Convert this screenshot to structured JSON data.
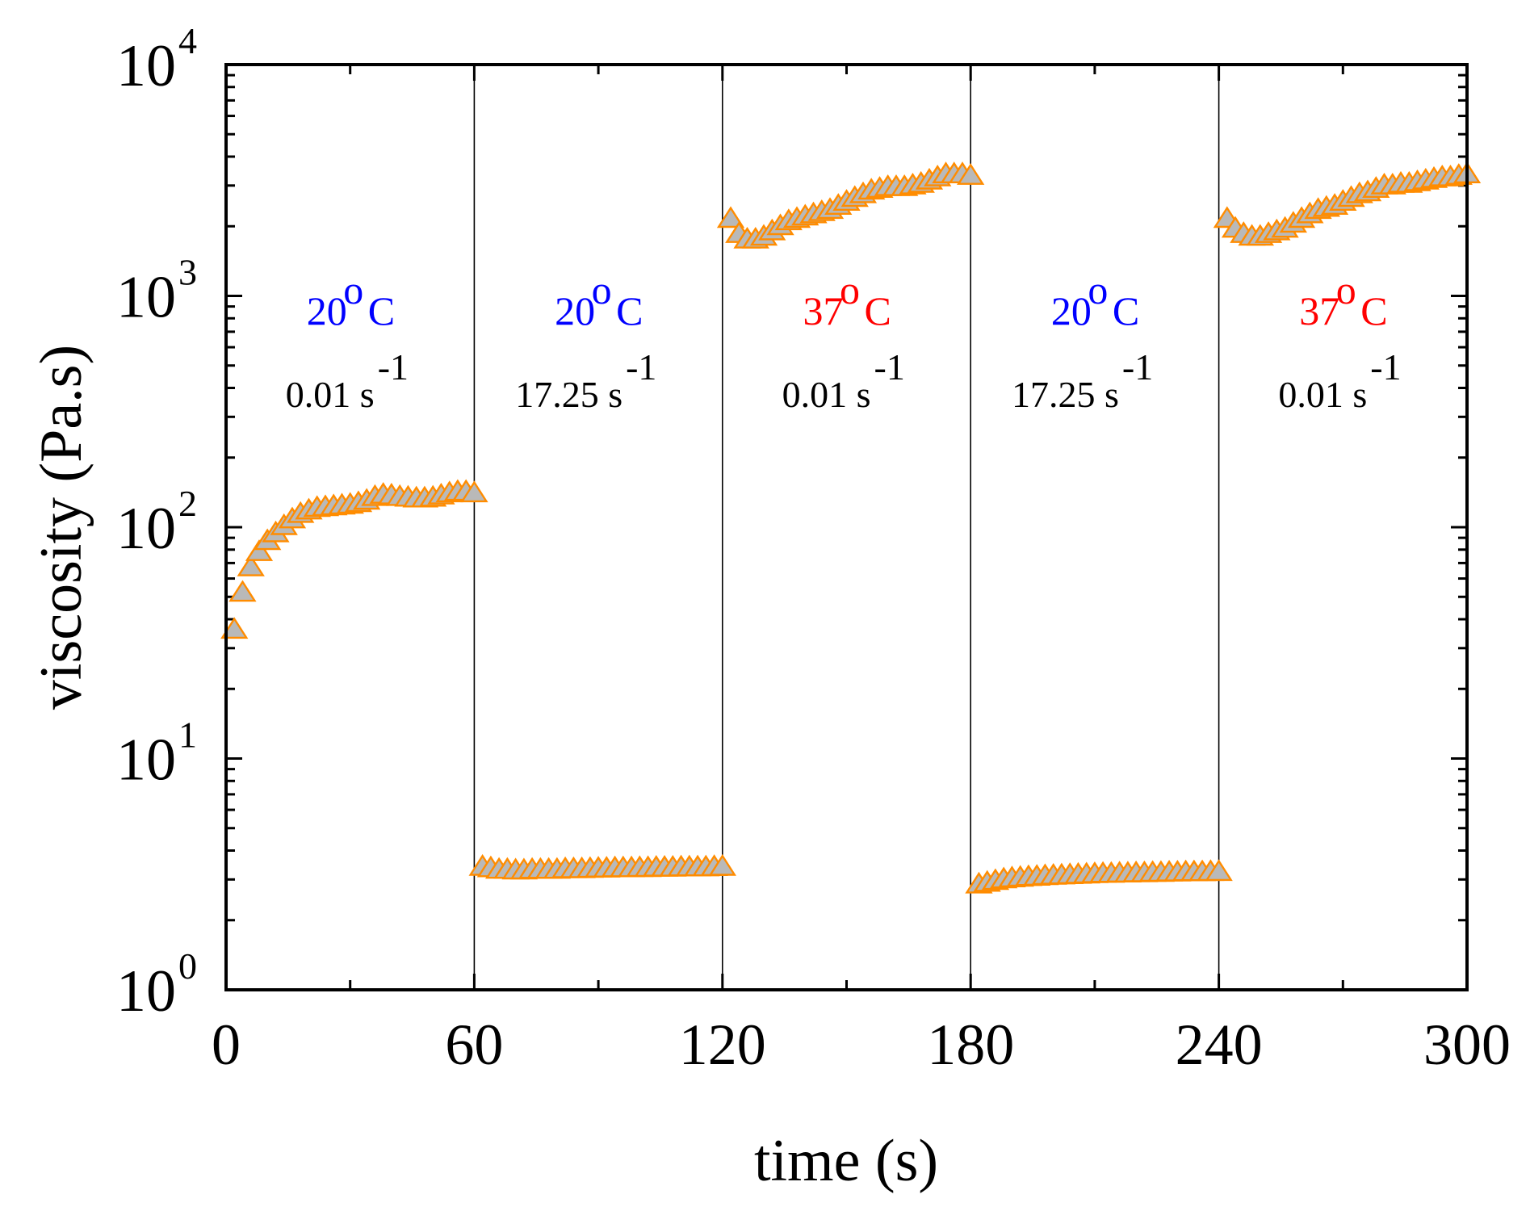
{
  "chart_data": {
    "type": "scatter",
    "xlabel": "time (s)",
    "ylabel": "viscosity (Pa.s)",
    "xlim": [
      0,
      300
    ],
    "ylim": [
      1,
      10000
    ],
    "yscale": "log",
    "x_ticks": [
      {
        "value": 0,
        "label": "0"
      },
      {
        "value": 60,
        "label": "60"
      },
      {
        "value": 120,
        "label": "120"
      },
      {
        "value": 180,
        "label": "180"
      },
      {
        "value": 240,
        "label": "240"
      },
      {
        "value": 300,
        "label": "300"
      }
    ],
    "y_ticks": [
      {
        "value": 1,
        "base": "10",
        "exp": "0"
      },
      {
        "value": 10,
        "base": "10",
        "exp": "1"
      },
      {
        "value": 100,
        "base": "10",
        "exp": "2"
      },
      {
        "value": 1000,
        "base": "10",
        "exp": "3"
      },
      {
        "value": 10000,
        "base": "10",
        "exp": "4"
      }
    ],
    "vlines": [
      60,
      120,
      180,
      240
    ],
    "colors": {
      "marker_fill": "#b9b9b9",
      "marker_edge": "#ff8c00",
      "blue": "#0000ff",
      "red": "#ff0000",
      "black": "#000000"
    },
    "annotations": [
      {
        "x_center": 30,
        "temp": "20",
        "deg": "o",
        "unit": "C",
        "temp_color": "blue",
        "rate": "0.01 s",
        "rate_exp": "-1"
      },
      {
        "x_center": 90,
        "temp": "20",
        "deg": "o",
        "unit": "C",
        "temp_color": "blue",
        "rate": "17.25 s",
        "rate_exp": "-1"
      },
      {
        "x_center": 150,
        "temp": "37",
        "deg": "o",
        "unit": "C",
        "temp_color": "red",
        "rate": "0.01 s",
        "rate_exp": "-1"
      },
      {
        "x_center": 210,
        "temp": "20",
        "deg": "o",
        "unit": "C",
        "temp_color": "blue",
        "rate": "17.25 s",
        "rate_exp": "-1"
      },
      {
        "x_center": 270,
        "temp": "37",
        "deg": "o",
        "unit": "C",
        "temp_color": "red",
        "rate": "0.01 s",
        "rate_exp": "-1"
      }
    ],
    "series": [
      {
        "name": "viscosity",
        "x": [
          2,
          4,
          6,
          8,
          10,
          12,
          14,
          16,
          18,
          20,
          22,
          24,
          26,
          28,
          30,
          32,
          34,
          36,
          38,
          40,
          42,
          44,
          46,
          48,
          50,
          52,
          54,
          56,
          58,
          60
        ],
        "y": [
          36,
          52,
          67,
          78,
          87,
          94,
          101,
          108,
          114,
          118,
          121,
          122,
          123,
          124,
          125,
          127,
          130,
          135,
          138,
          137,
          135,
          134,
          133,
          133,
          134,
          137,
          140,
          142,
          142,
          140
        ]
      },
      {
        "name": "viscosity",
        "x": [
          62,
          64,
          66,
          68,
          70,
          72,
          74,
          76,
          78,
          80,
          82,
          84,
          86,
          88,
          90,
          92,
          94,
          96,
          98,
          100,
          102,
          104,
          106,
          108,
          110,
          112,
          114,
          116,
          118,
          120
        ],
        "y": [
          3.4,
          3.35,
          3.3,
          3.3,
          3.28,
          3.28,
          3.3,
          3.3,
          3.3,
          3.3,
          3.32,
          3.32,
          3.32,
          3.33,
          3.34,
          3.34,
          3.35,
          3.35,
          3.35,
          3.36,
          3.36,
          3.37,
          3.37,
          3.37,
          3.38,
          3.38,
          3.38,
          3.38,
          3.39,
          3.4
        ]
      },
      {
        "name": "viscosity",
        "x": [
          122,
          124,
          126,
          128,
          130,
          132,
          134,
          136,
          138,
          140,
          142,
          144,
          146,
          148,
          150,
          152,
          154,
          156,
          158,
          160,
          162,
          164,
          166,
          168,
          170,
          172,
          174,
          176,
          178,
          180
        ],
        "y": [
          2150,
          1850,
          1750,
          1750,
          1800,
          1900,
          2000,
          2100,
          2150,
          2200,
          2250,
          2300,
          2350,
          2450,
          2550,
          2650,
          2750,
          2850,
          2900,
          2950,
          2950,
          2950,
          3000,
          3050,
          3150,
          3250,
          3350,
          3350,
          3350,
          3300
        ]
      },
      {
        "name": "viscosity",
        "x": [
          182,
          184,
          186,
          188,
          190,
          192,
          194,
          196,
          198,
          200,
          202,
          204,
          206,
          208,
          210,
          212,
          214,
          216,
          218,
          220,
          222,
          224,
          226,
          228,
          230,
          232,
          234,
          236,
          238,
          240
        ],
        "y": [
          2.85,
          2.9,
          2.95,
          3.0,
          3.03,
          3.05,
          3.07,
          3.08,
          3.1,
          3.11,
          3.12,
          3.13,
          3.14,
          3.15,
          3.16,
          3.17,
          3.17,
          3.18,
          3.18,
          3.19,
          3.19,
          3.2,
          3.2,
          3.21,
          3.21,
          3.22,
          3.22,
          3.22,
          3.23,
          3.23
        ]
      },
      {
        "name": "viscosity",
        "x": [
          242,
          244,
          246,
          248,
          250,
          252,
          254,
          256,
          258,
          260,
          262,
          264,
          266,
          268,
          270,
          272,
          274,
          276,
          278,
          280,
          282,
          284,
          286,
          288,
          290,
          292,
          294,
          296,
          298,
          300
        ],
        "y": [
          2150,
          1950,
          1850,
          1800,
          1800,
          1850,
          1900,
          1950,
          2050,
          2150,
          2250,
          2350,
          2400,
          2450,
          2550,
          2650,
          2750,
          2800,
          2900,
          3000,
          3000,
          3050,
          3050,
          3100,
          3150,
          3200,
          3250,
          3250,
          3300,
          3350
        ]
      }
    ]
  }
}
